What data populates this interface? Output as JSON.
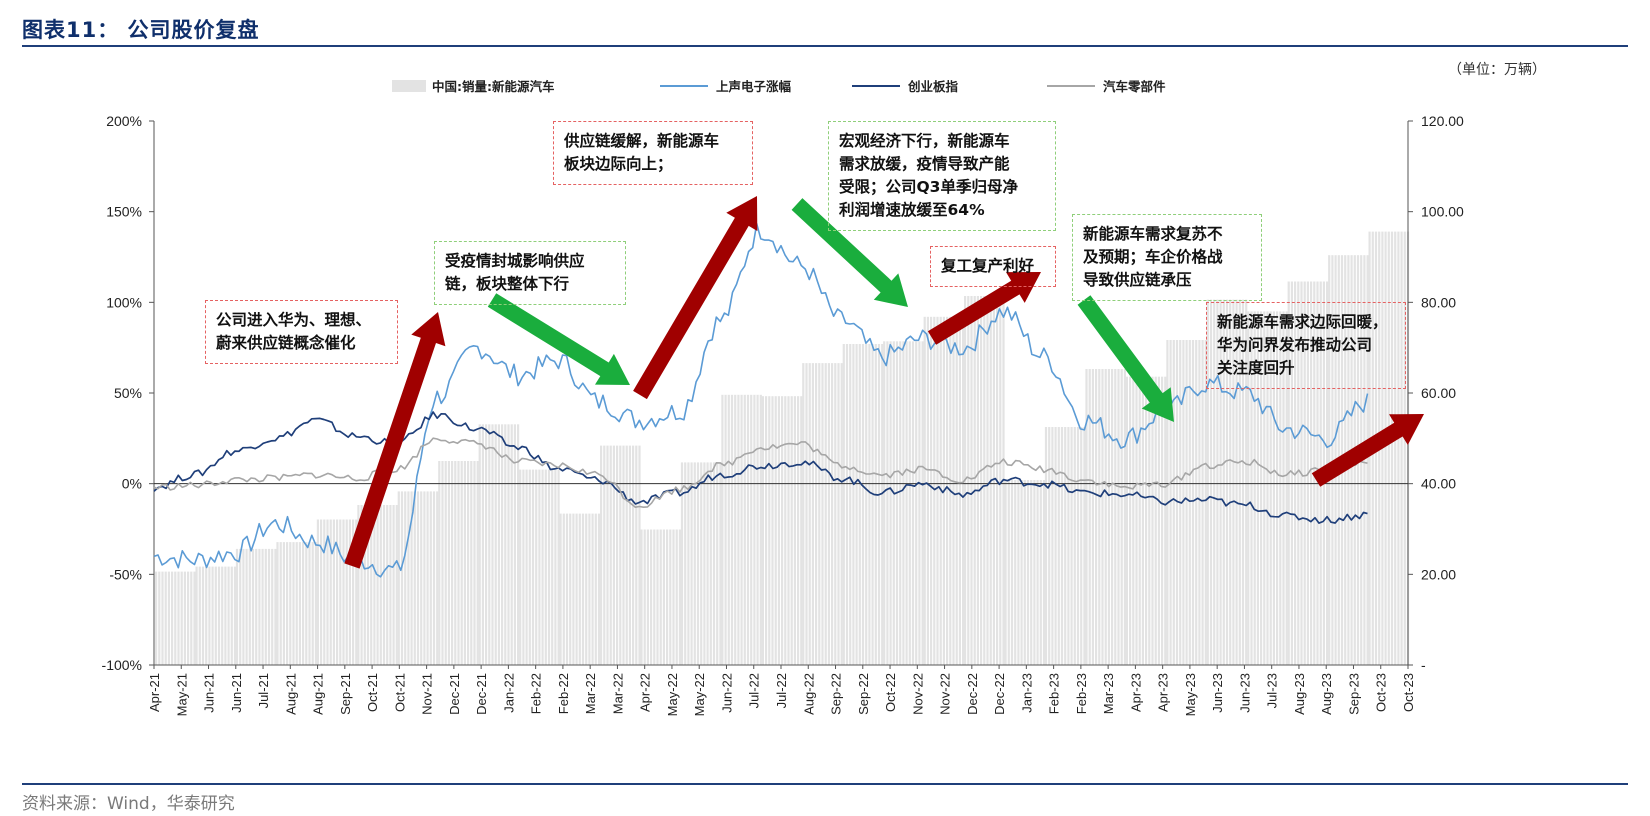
{
  "figure": {
    "title": "图表11：  公司股价复盘",
    "unit": "（单位：万辆）",
    "source": "资料来源：Wind，华泰研究"
  },
  "colors": {
    "bars": "#e3e3e3",
    "stock": "#5b9bd5",
    "chinext": "#1f3f7a",
    "autoparts": "#a6a6a6",
    "up_arrow": "#a00000",
    "down_arrow": "#1aad3d",
    "title_rule": "#1f3f7a"
  },
  "chart_data": {
    "type": "combo-bar-line",
    "x_ticks": [
      "Apr-21",
      "May-21",
      "Jun-21",
      "Jun-21",
      "Jul-21",
      "Aug-21",
      "Aug-21",
      "Sep-21",
      "Oct-21",
      "Oct-21",
      "Nov-21",
      "Dec-21",
      "Dec-21",
      "Jan-22",
      "Feb-22",
      "Feb-22",
      "Mar-22",
      "Mar-22",
      "Apr-22",
      "May-22",
      "May-22",
      "Jun-22",
      "Jul-22",
      "Jul-22",
      "Aug-22",
      "Sep-22",
      "Sep-22",
      "Oct-22",
      "Nov-22",
      "Nov-22",
      "Dec-22",
      "Dec-22",
      "Jan-23",
      "Feb-23",
      "Feb-23",
      "Mar-23",
      "Apr-23",
      "Apr-23",
      "May-23",
      "Jun-23",
      "Jun-23",
      "Jul-23",
      "Aug-23",
      "Aug-23",
      "Sep-23",
      "Oct-23",
      "Oct-23"
    ],
    "y_left": {
      "ticks": [
        "200%",
        "150%",
        "100%",
        "50%",
        "0%",
        "-50%",
        "-100%"
      ],
      "range": [
        -100,
        200
      ]
    },
    "y_right": {
      "ticks": [
        "120.00",
        "100.00",
        "80.00",
        "60.00",
        "40.00",
        "20.00",
        "-"
      ],
      "range": [
        0,
        120
      ]
    },
    "legend_position": "top",
    "legend": [
      "中国:销量:新能源汽车",
      "上声电子涨幅",
      "创业板指",
      "汽车零部件"
    ],
    "bars": {
      "name": "中国:销量:新能源汽车",
      "months": [
        "2021-04",
        "2021-05",
        "2021-06",
        "2021-07",
        "2021-08",
        "2021-09",
        "2021-10",
        "2021-11",
        "2021-12",
        "2022-01",
        "2022-02",
        "2022-03",
        "2022-04",
        "2022-05",
        "2022-06",
        "2022-07",
        "2022-08",
        "2022-09",
        "2022-10",
        "2022-11",
        "2022-12",
        "2023-01",
        "2023-02",
        "2023-03",
        "2023-04",
        "2023-05",
        "2023-06",
        "2023-07",
        "2023-08",
        "2023-09",
        "2023-10"
      ],
      "values": [
        20.6,
        21.7,
        25.6,
        27.1,
        32.1,
        35.3,
        38.3,
        45.0,
        53.1,
        43.1,
        33.4,
        48.4,
        29.9,
        44.7,
        59.6,
        59.3,
        66.6,
        70.8,
        71.4,
        76.8,
        81.4,
        40.8,
        52.5,
        65.3,
        63.6,
        71.7,
        80.6,
        78.0,
        84.6,
        90.4,
        95.6
      ]
    },
    "series": [
      {
        "name": "上声电子涨幅",
        "months": [
          "2021-04",
          "2021-05",
          "2021-06",
          "2021-07",
          "2021-08",
          "2021-09",
          "2021-10",
          "2021-11",
          "2021-12",
          "2022-01",
          "2022-02",
          "2022-03",
          "2022-04",
          "2022-05",
          "2022-06",
          "2022-07",
          "2022-08",
          "2022-09",
          "2022-10",
          "2022-11",
          "2022-12",
          "2023-01",
          "2023-02",
          "2023-03",
          "2023-04",
          "2023-05",
          "2023-06",
          "2023-07",
          "2023-08",
          "2023-09",
          "2023-10"
        ],
        "values": [
          -40,
          -42,
          -38,
          -22,
          -32,
          -42,
          -48,
          48,
          75,
          60,
          68,
          45,
          35,
          40,
          90,
          140,
          120,
          90,
          70,
          80,
          75,
          95,
          70,
          35,
          25,
          40,
          55,
          50,
          30,
          25,
          45
        ]
      },
      {
        "name": "创业板指",
        "months": [
          "2021-04",
          "2021-05",
          "2021-06",
          "2021-07",
          "2021-08",
          "2021-09",
          "2021-10",
          "2021-11",
          "2021-12",
          "2022-01",
          "2022-02",
          "2022-03",
          "2022-04",
          "2022-05",
          "2022-06",
          "2022-07",
          "2022-08",
          "2022-09",
          "2022-10",
          "2022-11",
          "2022-12",
          "2023-01",
          "2023-02",
          "2023-03",
          "2023-04",
          "2023-05",
          "2023-06",
          "2023-07",
          "2023-08",
          "2023-09",
          "2023-10"
        ],
        "values": [
          -2,
          5,
          18,
          25,
          35,
          26,
          22,
          38,
          30,
          20,
          8,
          2,
          -10,
          -5,
          5,
          10,
          12,
          3,
          -5,
          0,
          -6,
          2,
          0,
          -5,
          -6,
          -10,
          -9,
          -12,
          -18,
          -20,
          -17
        ]
      },
      {
        "name": "汽车零部件",
        "months": [
          "2021-04",
          "2021-05",
          "2021-06",
          "2021-07",
          "2021-08",
          "2021-09",
          "2021-10",
          "2021-11",
          "2021-12",
          "2022-01",
          "2022-02",
          "2022-03",
          "2022-04",
          "2022-05",
          "2022-06",
          "2022-07",
          "2022-08",
          "2022-09",
          "2022-10",
          "2022-11",
          "2022-12",
          "2023-01",
          "2023-02",
          "2023-03",
          "2023-04",
          "2023-05",
          "2023-06",
          "2023-07",
          "2023-08",
          "2023-09",
          "2023-10"
        ],
        "values": [
          -2,
          -1,
          2,
          3,
          5,
          3,
          8,
          25,
          22,
          12,
          10,
          5,
          -12,
          -3,
          10,
          20,
          22,
          10,
          5,
          8,
          2,
          12,
          8,
          2,
          -2,
          0,
          10,
          12,
          5,
          8,
          12
        ]
      }
    ]
  },
  "annotations": [
    {
      "id": "a1",
      "style": "red",
      "text": "公司进入华为、理想、\n蔚来供应链概念催化"
    },
    {
      "id": "a2",
      "style": "green",
      "text": "受疫情封城影响供应\n链，板块整体下行"
    },
    {
      "id": "a3",
      "style": "red",
      "text": "供应链缓解，新能源车\n板块边际向上；"
    },
    {
      "id": "a4",
      "style": "green",
      "text": "宏观经济下行，新能源车\n需求放缓，疫情导致产能\n受限；公司Q3单季归母净\n利润增速放缓至64%"
    },
    {
      "id": "a5",
      "style": "red",
      "text": "复工复产利好"
    },
    {
      "id": "a6",
      "style": "green",
      "text": "新能源车需求复苏不\n及预期；车企价格战\n导致供应链承压"
    },
    {
      "id": "a7",
      "style": "red",
      "text": "新能源车需求边际回暖，\n华为问界发布推动公司\n关注度回升"
    }
  ]
}
